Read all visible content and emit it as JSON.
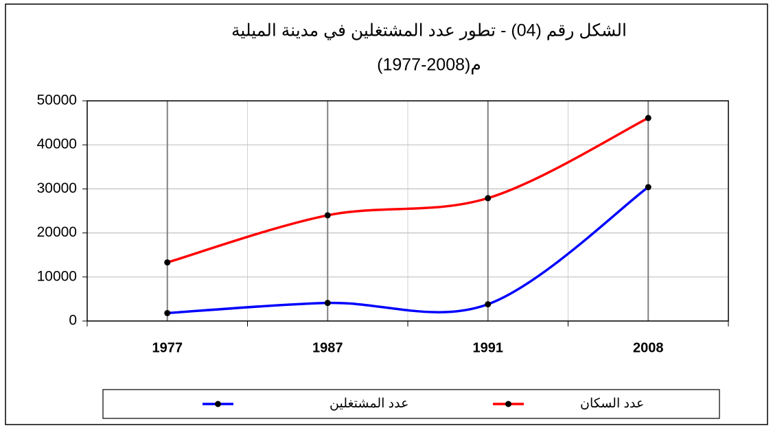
{
  "chart_data": {
    "type": "line",
    "title": "الشكل رقم (04) - تطور عدد المشتغلين في مدينة الميلية",
    "subtitle": "(1977-2008)م",
    "categories": [
      "1977",
      "1987",
      "1991",
      "2008"
    ],
    "series": [
      {
        "name": "عدد المشتغلين",
        "color": "#0000ff",
        "values": [
          1800,
          4100,
          3800,
          30400
        ]
      },
      {
        "name": "عدد السكان",
        "color": "#ff0000",
        "values": [
          13300,
          24000,
          27900,
          46100
        ]
      }
    ],
    "ylim": [
      0,
      50000
    ],
    "yticks": [
      0,
      10000,
      20000,
      30000,
      40000,
      50000
    ],
    "grid": true,
    "smooth": true,
    "legend": "bottom"
  }
}
